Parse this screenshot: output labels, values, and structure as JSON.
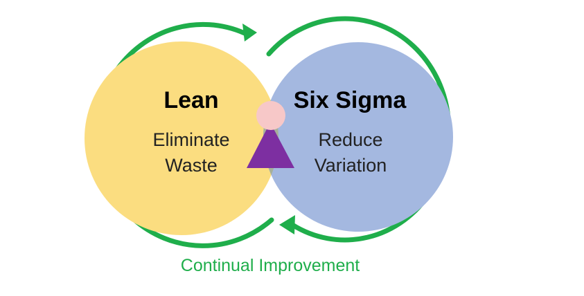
{
  "colors": {
    "lean_fill": "#fbdd80",
    "six_sigma_fill": "#a4b8e0",
    "overlap_fill": "#a6b09a",
    "arrow_green": "#1fae4b",
    "head_fill": "#f7c8c8",
    "body_fill": "#7d2fa1"
  },
  "lean": {
    "title": "Lean",
    "line1": "Eliminate",
    "line2": "Waste"
  },
  "six_sigma": {
    "title": "Six Sigma",
    "line1": "Reduce",
    "line2": "Variation"
  },
  "caption": "Continual Improvement",
  "icons": {
    "person": "person-icon",
    "cycle_arrows": "cycle-arrow-icon"
  }
}
